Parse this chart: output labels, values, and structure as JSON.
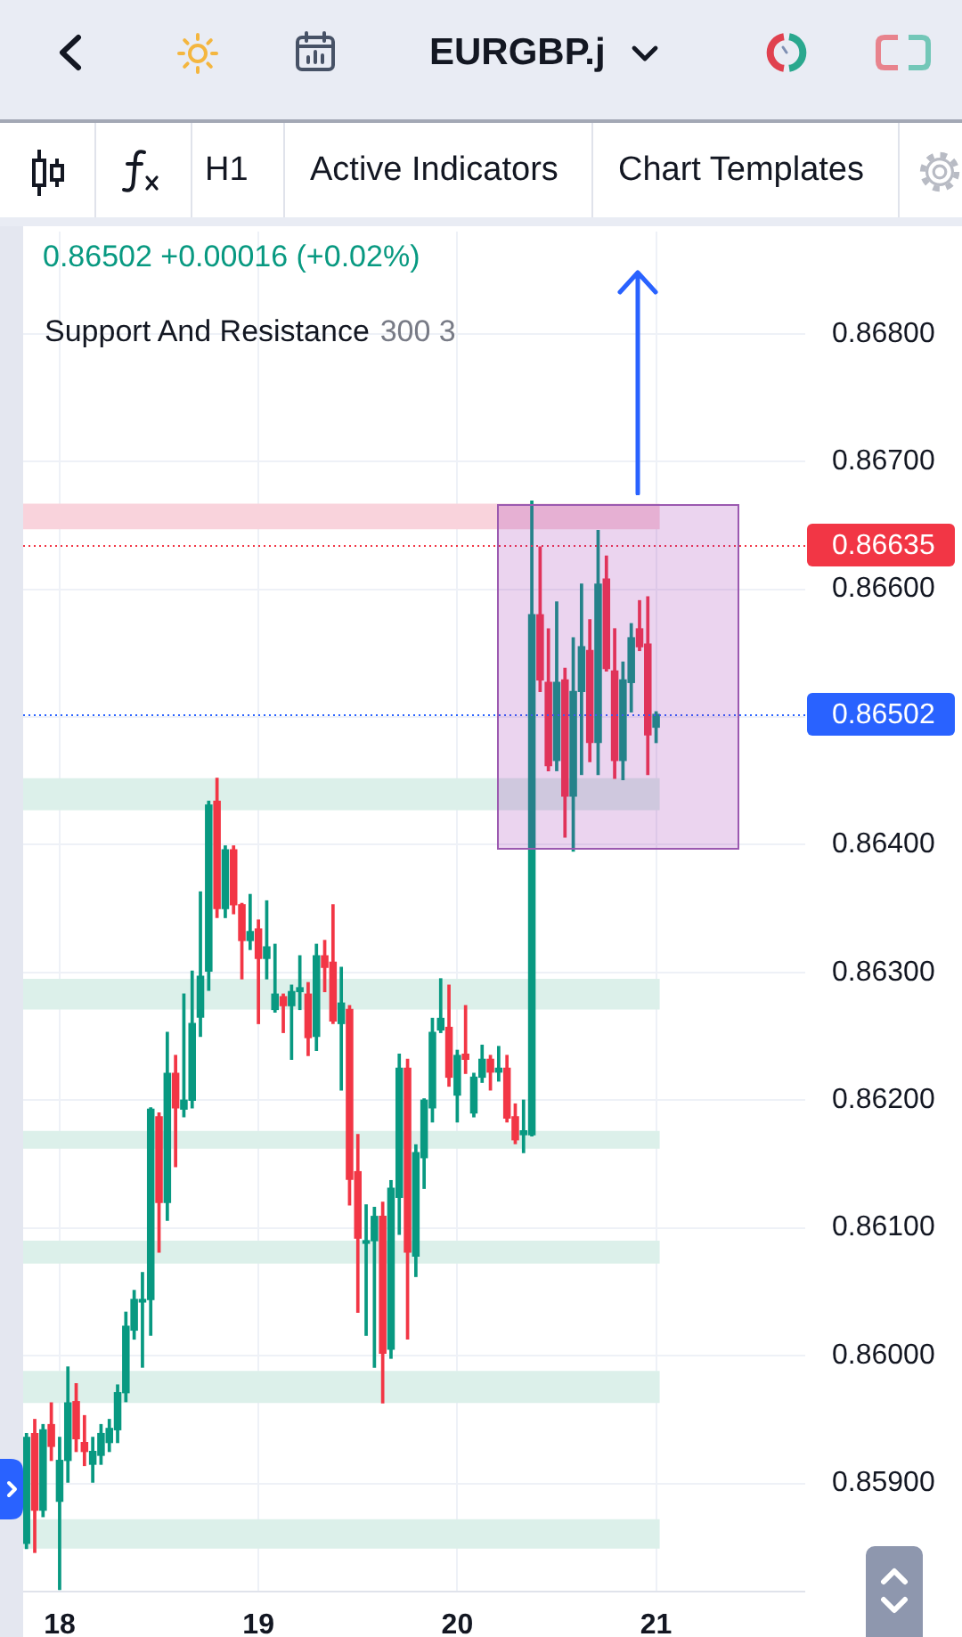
{
  "chart_data": {
    "type": "candlestick",
    "title": "EURGBP.j",
    "x": [
      17.8333,
      17.875,
      17.9167,
      17.9583,
      18,
      18.0417,
      18.0833,
      18.125,
      18.1667,
      18.2083,
      18.25,
      18.2917,
      18.3333,
      18.375,
      18.4167,
      18.4583,
      18.5,
      18.5417,
      18.5833,
      18.625,
      18.6667,
      18.7083,
      18.75,
      18.7917,
      18.8333,
      18.875,
      18.9167,
      18.9583,
      19,
      19.0417,
      19.0833,
      19.125,
      19.1667,
      19.2083,
      19.25,
      19.2917,
      19.3333,
      19.375,
      19.4167,
      19.4583,
      19.5,
      19.5417,
      19.5833,
      19.625,
      19.6667,
      19.7083,
      19.75,
      19.7917,
      19.8333,
      19.875,
      19.9167,
      19.9583,
      20,
      20.0417,
      20.0833,
      20.125,
      20.1667,
      20.2083,
      20.25,
      20.2917,
      20.3333,
      20.375,
      20.4167,
      20.4583,
      20.5,
      20.5417,
      20.5833,
      20.625,
      20.6667,
      20.7083,
      20.75,
      20.7917,
      20.8333,
      20.875,
      20.9167,
      20.9583,
      21
    ],
    "ohlc": [
      [
        0.85853,
        0.85939,
        0.85849,
        0.85936
      ],
      [
        0.85939,
        0.8595,
        0.85846,
        0.85879
      ],
      [
        0.85879,
        0.85946,
        0.85874,
        0.85942
      ],
      [
        0.85946,
        0.85963,
        0.85918,
        0.85929
      ],
      [
        0.85886,
        0.85936,
        0.85817,
        0.85918
      ],
      [
        0.85918,
        0.85991,
        0.85901,
        0.85963
      ],
      [
        0.85964,
        0.85978,
        0.85925,
        0.85935
      ],
      [
        0.85932,
        0.85953,
        0.85914,
        0.85925
      ],
      [
        0.85915,
        0.85936,
        0.85901,
        0.85925
      ],
      [
        0.85922,
        0.85946,
        0.85915,
        0.85939
      ],
      [
        0.85932,
        0.8595,
        0.85925,
        0.85943
      ],
      [
        0.85942,
        0.85977,
        0.85932,
        0.85971
      ],
      [
        0.85971,
        0.86034,
        0.85964,
        0.86023
      ],
      [
        0.8602,
        0.86051,
        0.86013,
        0.86044
      ],
      [
        0.86042,
        0.86065,
        0.85991,
        0.86044
      ],
      [
        0.86044,
        0.86194,
        0.86016,
        0.86193
      ],
      [
        0.86187,
        0.8619,
        0.86081,
        0.8612
      ],
      [
        0.8612,
        0.86253,
        0.86106,
        0.86221
      ],
      [
        0.86221,
        0.86235,
        0.86148,
        0.86194
      ],
      [
        0.86193,
        0.86283,
        0.86187,
        0.862
      ],
      [
        0.862,
        0.86301,
        0.86194,
        0.8626
      ],
      [
        0.86265,
        0.86363,
        0.8625,
        0.86297
      ],
      [
        0.86301,
        0.86434,
        0.86286,
        0.86431
      ],
      [
        0.86434,
        0.86452,
        0.86343,
        0.8635
      ],
      [
        0.8635,
        0.86399,
        0.86343,
        0.86396
      ],
      [
        0.86396,
        0.86399,
        0.86346,
        0.86353
      ],
      [
        0.86353,
        0.86354,
        0.86295,
        0.86325
      ],
      [
        0.86325,
        0.86361,
        0.86318,
        0.86332
      ],
      [
        0.86334,
        0.86341,
        0.8626,
        0.86311
      ],
      [
        0.86311,
        0.86356,
        0.86295,
        0.8632
      ],
      [
        0.86271,
        0.86322,
        0.86269,
        0.86283
      ],
      [
        0.86281,
        0.86283,
        0.86253,
        0.86274
      ],
      [
        0.86274,
        0.8629,
        0.86232,
        0.86285
      ],
      [
        0.86285,
        0.86313,
        0.86271,
        0.86288
      ],
      [
        0.86283,
        0.86292,
        0.86235,
        0.86249
      ],
      [
        0.8625,
        0.86322,
        0.86239,
        0.86313
      ],
      [
        0.86313,
        0.86325,
        0.86285,
        0.86304
      ],
      [
        0.86308,
        0.86353,
        0.8626,
        0.86262
      ],
      [
        0.8626,
        0.86304,
        0.86208,
        0.86276
      ],
      [
        0.86271,
        0.86274,
        0.86118,
        0.86138
      ],
      [
        0.86144,
        0.86173,
        0.86034,
        0.86092
      ],
      [
        0.86088,
        0.86118,
        0.86016,
        0.8609
      ],
      [
        0.8609,
        0.86116,
        0.85991,
        0.86109
      ],
      [
        0.86109,
        0.8612,
        0.85963,
        0.86002
      ],
      [
        0.86005,
        0.86137,
        0.85998,
        0.86131
      ],
      [
        0.86124,
        0.86236,
        0.86095,
        0.86225
      ],
      [
        0.86225,
        0.86232,
        0.86013,
        0.86081
      ],
      [
        0.86078,
        0.86165,
        0.86062,
        0.86159
      ],
      [
        0.86155,
        0.86201,
        0.86131,
        0.862
      ],
      [
        0.86194,
        0.86264,
        0.86183,
        0.86253
      ],
      [
        0.86255,
        0.86295,
        0.86253,
        0.86264
      ],
      [
        0.86257,
        0.8629,
        0.86211,
        0.86218
      ],
      [
        0.86204,
        0.86239,
        0.86183,
        0.86235
      ],
      [
        0.86236,
        0.86274,
        0.86221,
        0.86232
      ],
      [
        0.8619,
        0.86221,
        0.86187,
        0.86218
      ],
      [
        0.86218,
        0.86243,
        0.86214,
        0.86232
      ],
      [
        0.86232,
        0.86235,
        0.86208,
        0.86222
      ],
      [
        0.86222,
        0.86242,
        0.86215,
        0.86225
      ],
      [
        0.86225,
        0.86235,
        0.86183,
        0.86186
      ],
      [
        0.86187,
        0.86197,
        0.86166,
        0.86169
      ],
      [
        0.86173,
        0.862,
        0.86159,
        0.86176
      ],
      [
        0.86173,
        0.86669,
        0.86172,
        0.8658
      ],
      [
        0.8658,
        0.86633,
        0.8652,
        0.86529
      ],
      [
        0.86527,
        0.86569,
        0.86458,
        0.86462
      ],
      [
        0.86466,
        0.8659,
        0.86458,
        0.86527
      ],
      [
        0.86529,
        0.86538,
        0.86406,
        0.86438
      ],
      [
        0.86438,
        0.86562,
        0.86395,
        0.8652
      ],
      [
        0.8652,
        0.86604,
        0.86455,
        0.86555
      ],
      [
        0.86552,
        0.86576,
        0.86465,
        0.8648
      ],
      [
        0.8648,
        0.86646,
        0.86455,
        0.86604
      ],
      [
        0.86608,
        0.86626,
        0.86536,
        0.86538
      ],
      [
        0.86536,
        0.86569,
        0.86452,
        0.86466
      ],
      [
        0.86466,
        0.86543,
        0.86451,
        0.86529
      ],
      [
        0.86527,
        0.86573,
        0.86504,
        0.86562
      ],
      [
        0.86569,
        0.86591,
        0.86552,
        0.86555
      ],
      [
        0.86557,
        0.86594,
        0.86455,
        0.86486
      ],
      [
        0.86492,
        0.86504,
        0.8648,
        0.86502
      ]
    ],
    "colors": [
      "#089981",
      "#f23645",
      "#089981",
      "#f23645",
      "#089981",
      "#089981",
      "#f23645",
      "#f23645",
      "#089981",
      "#089981",
      "#089981",
      "#089981",
      "#089981",
      "#089981",
      "#089981",
      "#089981",
      "#f23645",
      "#089981",
      "#f23645",
      "#089981",
      "#089981",
      "#089981",
      "#089981",
      "#f23645",
      "#089981",
      "#f23645",
      "#f23645",
      "#089981",
      "#f23645",
      "#089981",
      "#089981",
      "#f23645",
      "#089981",
      "#089981",
      "#f23645",
      "#089981",
      "#f23645",
      "#f23645",
      "#089981",
      "#f23645",
      "#f23645",
      "#089981",
      "#089981",
      "#f23645",
      "#089981",
      "#089981",
      "#f23645",
      "#089981",
      "#089981",
      "#089981",
      "#089981",
      "#f23645",
      "#089981",
      "#f23645",
      "#089981",
      "#089981",
      "#f23645",
      "#089981",
      "#f23645",
      "#f23645",
      "#089981",
      "#089981",
      "#f23645",
      "#f23645",
      "#089981",
      "#f23645",
      "#089981",
      "#089981",
      "#f23645",
      "#089981",
      "#f23645",
      "#f23645",
      "#089981",
      "#089981",
      "#f23645",
      "#f23645",
      "#089981"
    ],
    "xlim": [
      17.8167,
      21.75
    ],
    "xticks": [
      18,
      19,
      20,
      21
    ],
    "ylim": [
      0.85816,
      0.8688
    ],
    "yticks": [
      {
        "value": 0.859,
        "label": "0.85900"
      },
      {
        "value": 0.86,
        "label": "0.86000"
      },
      {
        "value": 0.861,
        "label": "0.86100"
      },
      {
        "value": 0.862,
        "label": "0.86200"
      },
      {
        "value": 0.863,
        "label": "0.86300"
      },
      {
        "value": 0.864,
        "label": "0.86400"
      },
      {
        "value": 0.865,
        "label": null
      },
      {
        "value": 0.866,
        "label": "0.86600"
      },
      {
        "value": 0.867,
        "label": "0.86700"
      },
      {
        "value": 0.868,
        "label": "0.86800"
      }
    ],
    "grid": true,
    "ref_lines": [
      {
        "axis": "y",
        "value": 0.86635,
        "label": "0.86635",
        "color": "#f23645",
        "line_style": "dotted"
      },
      {
        "axis": "y",
        "value": 0.86502,
        "label": "0.86502",
        "color": "#2962ff",
        "line_style": "dotted"
      }
    ],
    "bands": [
      {
        "axis": "y",
        "from": 0.86647,
        "to": 0.86667,
        "color": "#f9d3dc"
      },
      {
        "axis": "y",
        "from": 0.86427,
        "to": 0.86452,
        "color": "#dcf0ea"
      },
      {
        "axis": "y",
        "from": 0.86271,
        "to": 0.86295,
        "color": "#dcf0ea"
      },
      {
        "axis": "y",
        "from": 0.86162,
        "to": 0.86176,
        "color": "#dcf0ea"
      },
      {
        "axis": "y",
        "from": 0.86072,
        "to": 0.8609,
        "color": "#dcf0ea"
      },
      {
        "axis": "y",
        "from": 0.85963,
        "to": 0.85988,
        "color": "#dcf0ea"
      },
      {
        "axis": "y",
        "from": 0.85849,
        "to": 0.85872,
        "color": "#dcf0ea"
      }
    ],
    "annotations": [
      "0.86502 +0.00016 (+0.02%)",
      "Support And Resistance",
      "300 3",
      "H1",
      "Active Indicators",
      "Chart Templates"
    ]
  }
}
